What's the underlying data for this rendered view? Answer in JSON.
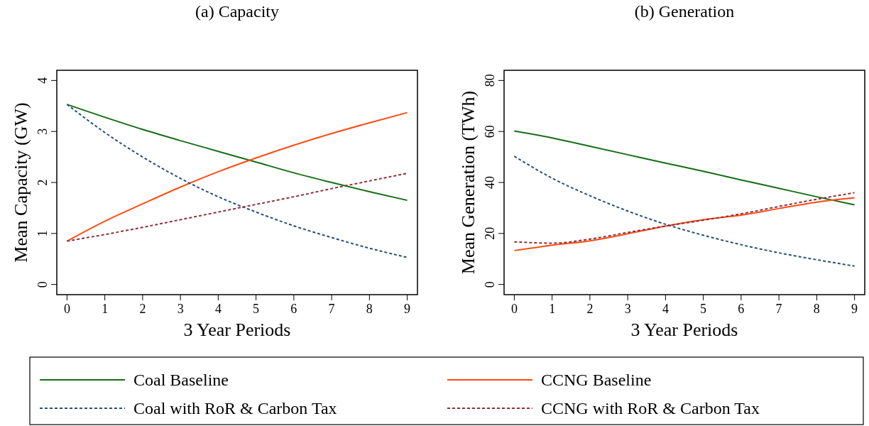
{
  "chart_data": [
    {
      "type": "line",
      "title": "(a) Capacity",
      "xlabel": "3 Year Periods",
      "ylabel": "Mean Capacity (GW)",
      "x": [
        0,
        1,
        2,
        3,
        4,
        5,
        6,
        7,
        8,
        9
      ],
      "xlim": [
        -0.27,
        9.27
      ],
      "xticks": [
        0,
        1,
        2,
        3,
        4,
        5,
        6,
        7,
        8,
        9
      ],
      "ylim": [
        -0.2,
        4.2
      ],
      "yticks": [
        0,
        1,
        2,
        3,
        4
      ],
      "grid": false,
      "legend": "bottom",
      "series": [
        {
          "name": "Coal Baseline",
          "color": "#166d16",
          "line_style": "solid",
          "values": [
            3.53,
            3.28,
            3.04,
            2.82,
            2.61,
            2.4,
            2.19,
            2.0,
            1.82,
            1.65
          ]
        },
        {
          "name": "CCNG Baseline",
          "color": "#ff4b14",
          "line_style": "solid",
          "values": [
            0.85,
            1.24,
            1.58,
            1.91,
            2.21,
            2.48,
            2.73,
            2.96,
            3.17,
            3.37
          ]
        },
        {
          "name": "Coal with RoR & Carbon Tax",
          "color": "#24517c",
          "line_style": "dashed",
          "values": [
            3.53,
            2.98,
            2.5,
            2.08,
            1.72,
            1.42,
            1.15,
            0.92,
            0.71,
            0.53
          ]
        },
        {
          "name": "CCNG with RoR & Carbon Tax",
          "color": "#8e3038",
          "line_style": "dashed",
          "values": [
            0.85,
            0.98,
            1.12,
            1.27,
            1.42,
            1.57,
            1.72,
            1.88,
            2.03,
            2.18
          ]
        }
      ]
    },
    {
      "type": "line",
      "title": "(b) Generation",
      "xlabel": "3 Year Periods",
      "ylabel": "Mean Generation (TWh)",
      "x": [
        0,
        1,
        2,
        3,
        4,
        5,
        6,
        7,
        8,
        9
      ],
      "xlim": [
        -0.27,
        9.27
      ],
      "xticks": [
        0,
        1,
        2,
        3,
        4,
        5,
        6,
        7,
        8,
        9
      ],
      "ylim": [
        -4,
        84
      ],
      "yticks": [
        0,
        20,
        40,
        60,
        80
      ],
      "grid": false,
      "series": [
        {
          "color": "#166d16",
          "line_style": "solid",
          "values": [
            60.2,
            57.5,
            54.2,
            50.9,
            47.6,
            44.4,
            41.0,
            37.7,
            34.4,
            31.2
          ]
        },
        {
          "color": "#ff4b14",
          "line_style": "solid",
          "values": [
            13.3,
            15.4,
            17.1,
            19.9,
            22.9,
            25.4,
            27.2,
            29.8,
            32.3,
            34.0
          ]
        },
        {
          "color": "#24517c",
          "line_style": "dashed",
          "values": [
            50.3,
            41.7,
            34.8,
            28.8,
            23.6,
            19.3,
            15.6,
            12.4,
            9.7,
            7.2
          ]
        },
        {
          "color": "#8e3038",
          "line_style": "dashed",
          "values": [
            16.7,
            16.2,
            17.8,
            20.4,
            22.9,
            25.2,
            27.7,
            30.6,
            33.4,
            36.0
          ]
        }
      ]
    }
  ]
}
